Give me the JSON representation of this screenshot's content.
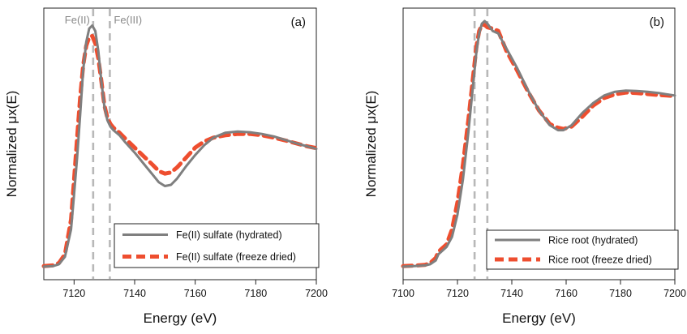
{
  "chart_data": [
    {
      "type": "line",
      "panel_label": "(a)",
      "xlabel": "Energy (eV)",
      "ylabel": "Normalized μx(E)",
      "xlim": [
        7110,
        7200
      ],
      "ylim": [
        0,
        1.0
      ],
      "x_ticks": [
        7120,
        7140,
        7160,
        7180,
        7200
      ],
      "y_ticks_shown": false,
      "grid": false,
      "legend_position": "bottom-right",
      "reference_lines": [
        {
          "x": 7126.3,
          "label": "Fe(II)",
          "color": "#b8b8b8",
          "style": "dashed"
        },
        {
          "x": 7131.8,
          "label": "Fe(III)",
          "color": "#b8b8b8",
          "style": "dashed"
        }
      ],
      "series": [
        {
          "name": "Fe(II) sulfate (hydrated)",
          "color": "#7f7f7f",
          "style": "solid",
          "x": [
            7110,
            7113,
            7115,
            7117,
            7119,
            7120,
            7121,
            7122,
            7123,
            7124,
            7125,
            7126,
            7127,
            7128,
            7129,
            7130,
            7131,
            7132,
            7133,
            7135,
            7137,
            7140,
            7143,
            7146,
            7148,
            7150,
            7152,
            7154,
            7157,
            7160,
            7163,
            7166,
            7170,
            7174,
            7178,
            7182,
            7186,
            7190,
            7194,
            7197,
            7200
          ],
          "y": [
            0.01,
            0.012,
            0.02,
            0.05,
            0.16,
            0.3,
            0.45,
            0.62,
            0.8,
            0.915,
            0.97,
            0.982,
            0.96,
            0.88,
            0.76,
            0.655,
            0.6,
            0.575,
            0.56,
            0.54,
            0.51,
            0.47,
            0.425,
            0.38,
            0.35,
            0.335,
            0.34,
            0.365,
            0.415,
            0.46,
            0.5,
            0.53,
            0.55,
            0.555,
            0.552,
            0.545,
            0.535,
            0.52,
            0.505,
            0.495,
            0.485
          ]
        },
        {
          "name": "Fe(II) sulfate (freeze dried)",
          "color": "#ee4e2f",
          "style": "dashed",
          "x": [
            7110,
            7113,
            7115,
            7117,
            7119,
            7120,
            7121,
            7122,
            7123,
            7124,
            7125,
            7126,
            7127,
            7128,
            7129,
            7130,
            7131,
            7132,
            7133,
            7135,
            7137,
            7140,
            7143,
            7146,
            7148,
            7150,
            7152,
            7154,
            7157,
            7160,
            7163,
            7166,
            7170,
            7174,
            7178,
            7182,
            7186,
            7190,
            7194,
            7197,
            7200
          ],
          "y": [
            0.012,
            0.015,
            0.025,
            0.06,
            0.2,
            0.36,
            0.53,
            0.69,
            0.82,
            0.9,
            0.935,
            0.94,
            0.91,
            0.85,
            0.76,
            0.66,
            0.61,
            0.585,
            0.57,
            0.55,
            0.525,
            0.49,
            0.455,
            0.42,
            0.395,
            0.385,
            0.39,
            0.41,
            0.45,
            0.49,
            0.515,
            0.53,
            0.54,
            0.545,
            0.545,
            0.54,
            0.53,
            0.518,
            0.505,
            0.495,
            0.488
          ]
        }
      ]
    },
    {
      "type": "line",
      "panel_label": "(b)",
      "xlabel": "Energy (eV)",
      "ylabel": "Normalized μx(E)",
      "xlim": [
        7100,
        7200
      ],
      "ylim": [
        0,
        1.0
      ],
      "x_ticks": [
        7100,
        7120,
        7140,
        7160,
        7180,
        7200
      ],
      "y_ticks_shown": false,
      "grid": false,
      "legend_position": "bottom-right",
      "reference_lines": [
        {
          "x": 7126.3,
          "label": "",
          "color": "#b8b8b8",
          "style": "dashed"
        },
        {
          "x": 7131.0,
          "label": "",
          "color": "#b8b8b8",
          "style": "dashed"
        }
      ],
      "series": [
        {
          "name": "Rice root (hydrated)",
          "color": "#7f7f7f",
          "style": "solid",
          "x": [
            7100,
            7104,
            7108,
            7110,
            7112,
            7113,
            7114,
            7116,
            7118,
            7120,
            7122,
            7124,
            7126,
            7127,
            7128,
            7129,
            7130,
            7131,
            7133,
            7135,
            7138,
            7142,
            7146,
            7150,
            7154,
            7157,
            7159,
            7162,
            7166,
            7170,
            7174,
            7178,
            7182,
            7186,
            7190,
            7194,
            7197,
            7200
          ],
          "y": [
            0.01,
            0.012,
            0.015,
            0.02,
            0.035,
            0.06,
            0.07,
            0.09,
            0.13,
            0.22,
            0.36,
            0.55,
            0.77,
            0.88,
            0.95,
            0.99,
            1.0,
            0.99,
            0.96,
            0.95,
            0.89,
            0.81,
            0.72,
            0.64,
            0.58,
            0.56,
            0.56,
            0.58,
            0.63,
            0.67,
            0.7,
            0.715,
            0.72,
            0.718,
            0.715,
            0.71,
            0.705,
            0.7
          ]
        },
        {
          "name": "Rice root (freeze dried)",
          "color": "#ee4e2f",
          "style": "dashed",
          "x": [
            7100,
            7104,
            7108,
            7110,
            7112,
            7113,
            7114,
            7116,
            7118,
            7120,
            7122,
            7124,
            7126,
            7127,
            7128,
            7129,
            7130,
            7131,
            7133,
            7135,
            7138,
            7142,
            7146,
            7150,
            7154,
            7157,
            7159,
            7162,
            7166,
            7170,
            7174,
            7178,
            7182,
            7186,
            7190,
            7194,
            7197,
            7200
          ],
          "y": [
            0.012,
            0.014,
            0.017,
            0.025,
            0.045,
            0.07,
            0.08,
            0.1,
            0.16,
            0.27,
            0.42,
            0.6,
            0.8,
            0.9,
            0.96,
            0.985,
            0.985,
            0.975,
            0.97,
            0.96,
            0.88,
            0.8,
            0.715,
            0.64,
            0.585,
            0.57,
            0.565,
            0.575,
            0.615,
            0.66,
            0.69,
            0.705,
            0.712,
            0.71,
            0.706,
            0.702,
            0.7,
            0.698
          ]
        }
      ]
    }
  ]
}
